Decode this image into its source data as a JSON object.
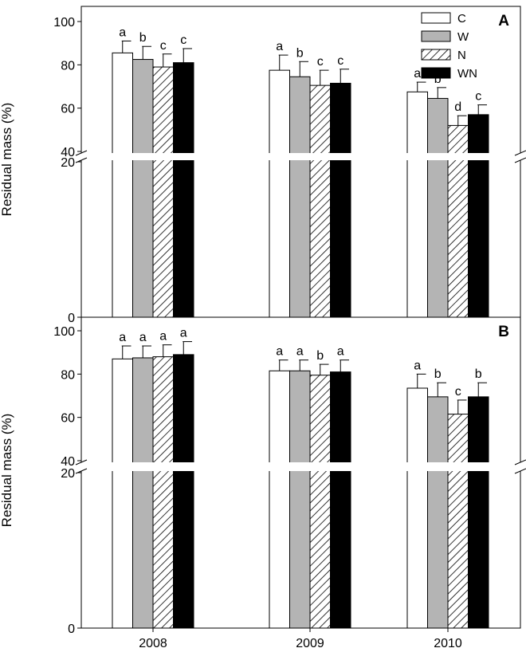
{
  "chart_data": {
    "type": "bar",
    "ylabel": "Residual mass (%)",
    "categories": [
      "2008",
      "2009",
      "2010"
    ],
    "legend": [
      "C",
      "W",
      "N",
      "WN"
    ],
    "legend_placement": "top-right",
    "series_style": {
      "C": "white",
      "W": "gray",
      "N": "hatched",
      "WN": "black"
    },
    "y_axis": {
      "break": [
        20,
        40
      ],
      "lower_ticks": [
        0,
        20
      ],
      "upper_ticks": [
        40,
        60,
        80,
        100
      ],
      "ylim": [
        0,
        100
      ]
    },
    "panels": [
      {
        "panel_label": "A",
        "series": [
          {
            "name": "C",
            "values": [
              85.5,
              77.5,
              67.5
            ],
            "errors": [
              5.5,
              7,
              4.5
            ],
            "letters": [
              "a",
              "a",
              "a"
            ]
          },
          {
            "name": "W",
            "values": [
              82.5,
              74.5,
              64.5
            ],
            "errors": [
              6,
              7,
              5
            ],
            "letters": [
              "b",
              "b",
              "b"
            ]
          },
          {
            "name": "N",
            "values": [
              79,
              70.5,
              52
            ],
            "errors": [
              6,
              7,
              4.5
            ],
            "letters": [
              "c",
              "c",
              "d"
            ]
          },
          {
            "name": "WN",
            "values": [
              81,
              71.5,
              57
            ],
            "errors": [
              6.5,
              6.5,
              4.5
            ],
            "letters": [
              "c",
              "c",
              "c"
            ]
          }
        ]
      },
      {
        "panel_label": "B",
        "series": [
          {
            "name": "C",
            "values": [
              87,
              81.5,
              73.5
            ],
            "errors": [
              6,
              5,
              6.5
            ],
            "letters": [
              "a",
              "a",
              "a"
            ]
          },
          {
            "name": "W",
            "values": [
              87.5,
              81.5,
              69.5
            ],
            "errors": [
              5.5,
              5,
              6.5
            ],
            "letters": [
              "a",
              "a",
              "b"
            ]
          },
          {
            "name": "N",
            "values": [
              88,
              79.5,
              61.5
            ],
            "errors": [
              5.5,
              5,
              6.5
            ],
            "letters": [
              "a",
              "b",
              "c"
            ]
          },
          {
            "name": "WN",
            "values": [
              89,
              81,
              69.5
            ],
            "errors": [
              6,
              5.5,
              6.5
            ],
            "letters": [
              "a",
              "a",
              "b"
            ]
          }
        ]
      }
    ]
  }
}
